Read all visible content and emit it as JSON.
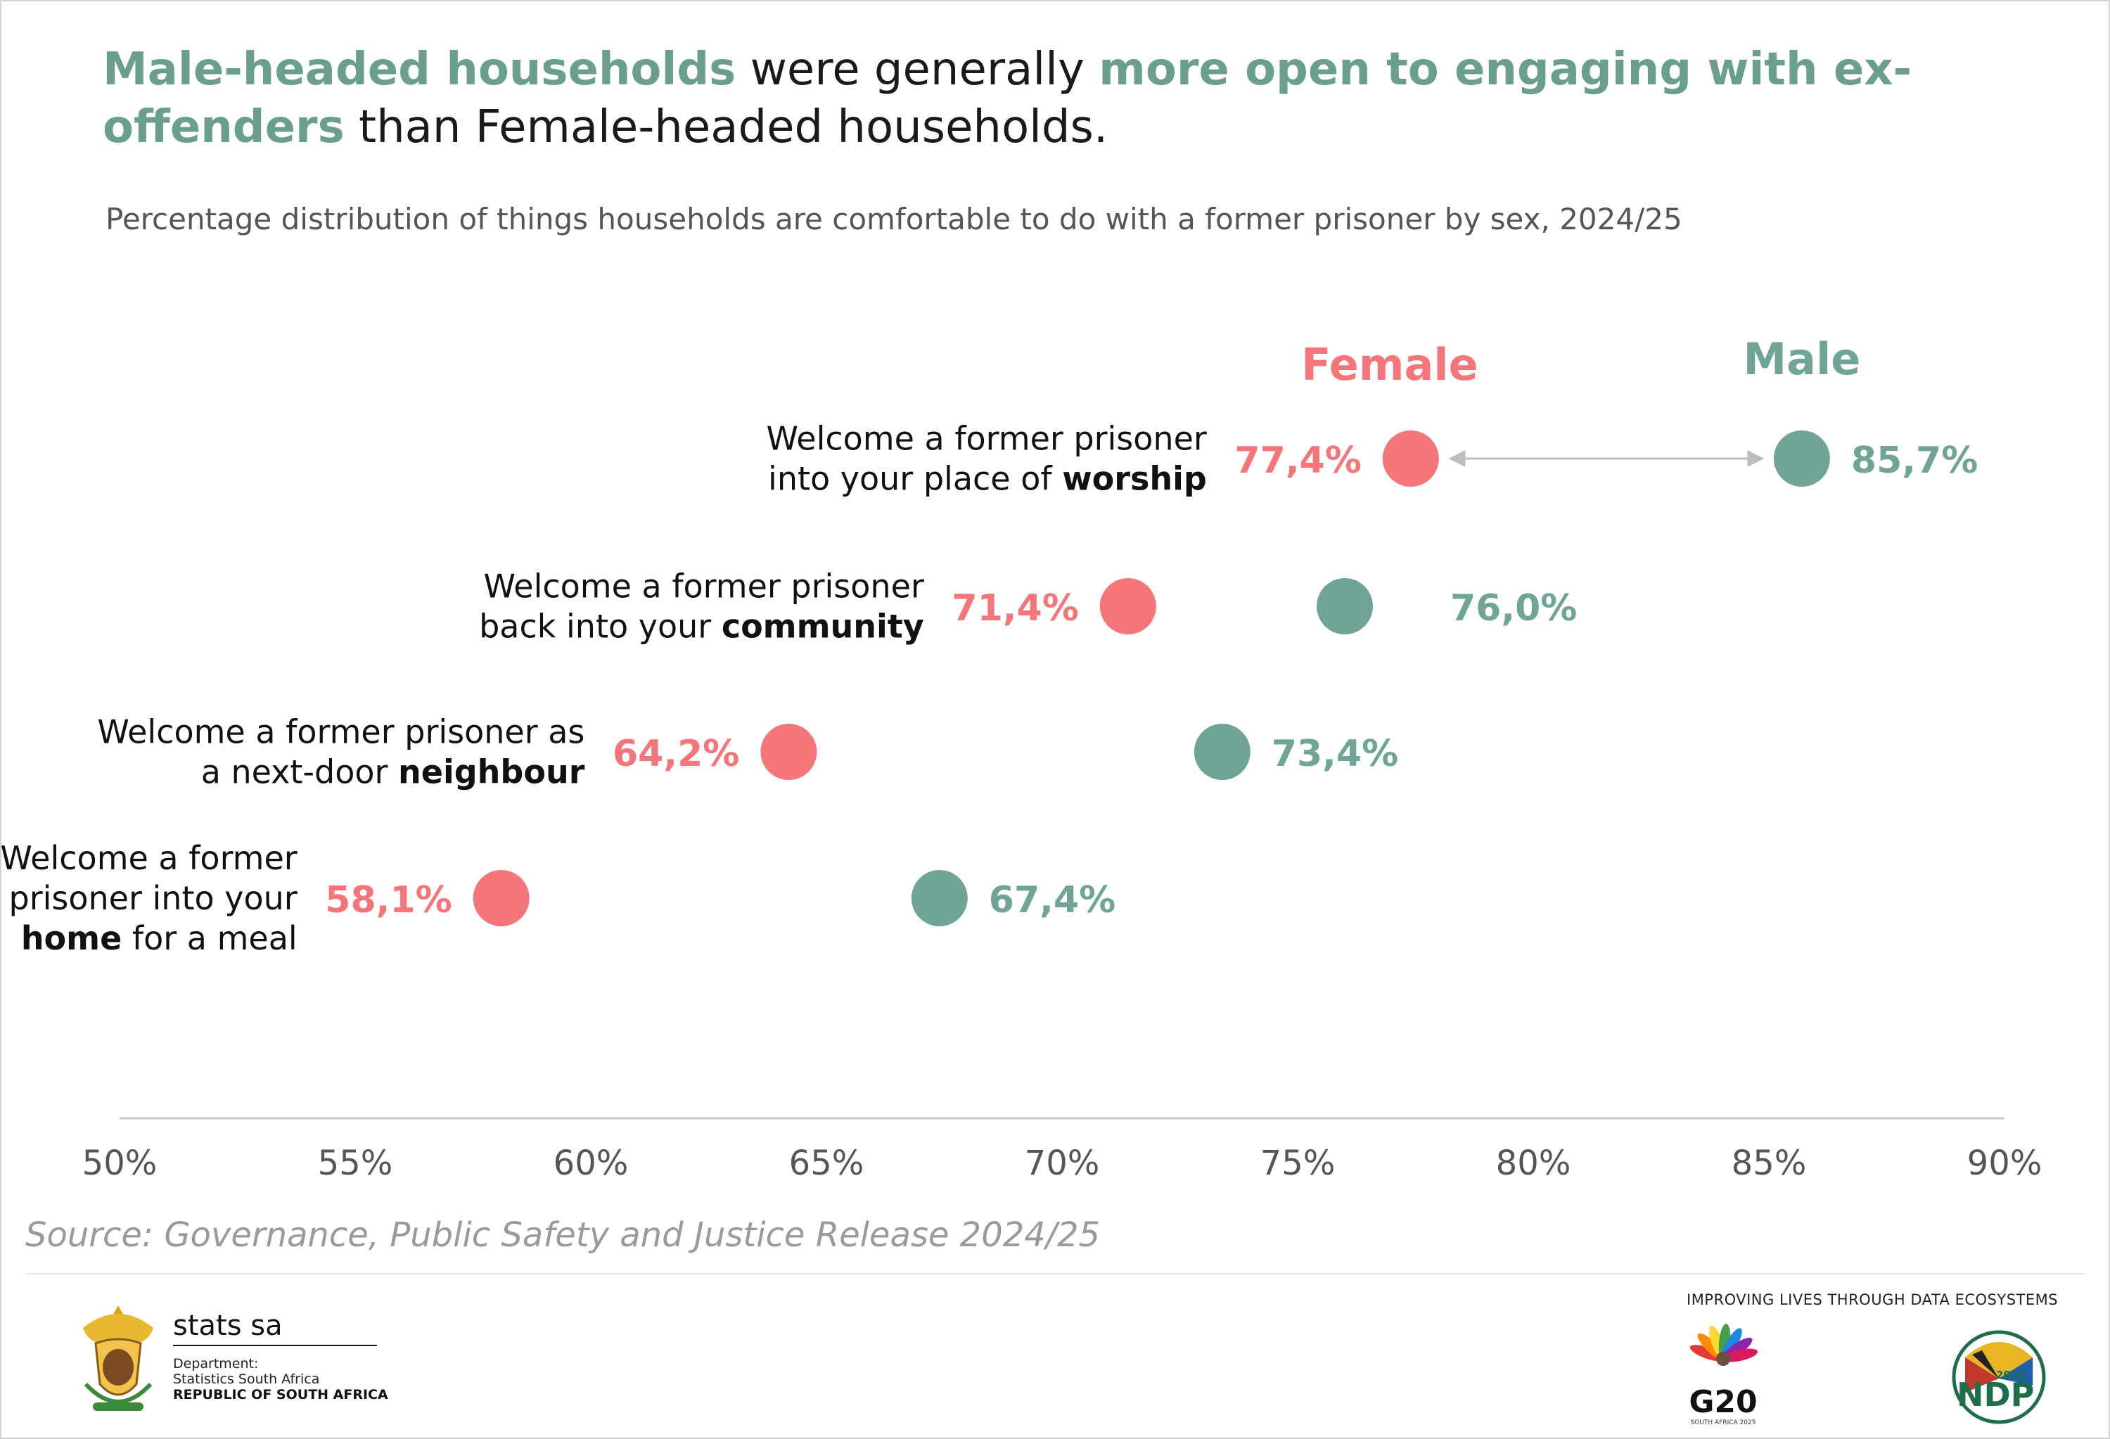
{
  "headline": {
    "part1": "Male-headed households",
    "part2": " were generally ",
    "part3": "more open to engaging with ex-offenders",
    "part4": " than Female-headed households."
  },
  "subtitle": "Percentage distribution of things households are comfortable to do with a former prisoner by sex, 2024/25",
  "source": "Source: Governance, Public Safety and Justice Release 2024/25",
  "colors": {
    "female": "#f4767b",
    "male": "#6fa497",
    "axis": "#c8c8c8",
    "arrow": "#bdbdbd"
  },
  "chart_data": {
    "type": "scatter",
    "xlim": [
      50,
      90
    ],
    "x_tick_labels": [
      "50%",
      "55%",
      "60%",
      "65%",
      "70%",
      "75%",
      "80%",
      "85%",
      "90%"
    ],
    "x_ticks": [
      50,
      55,
      60,
      65,
      70,
      75,
      80,
      85,
      90
    ],
    "series": [
      {
        "name": "Female",
        "values": [
          77.4,
          71.4,
          64.2,
          58.1
        ],
        "labels": [
          "77,4%",
          "71,4%",
          "64,2%",
          "58,1%"
        ]
      },
      {
        "name": "Male",
        "values": [
          85.7,
          76.0,
          73.4,
          67.4
        ],
        "labels": [
          "85,7%",
          "76,0%",
          "73,4%",
          "67,4%"
        ]
      }
    ],
    "categories": [
      {
        "lines": [
          [
            {
              "t": "Welcome a former prisoner",
              "b": false
            }
          ],
          [
            {
              "t": "into your place of ",
              "b": false
            },
            {
              "t": "worship",
              "b": true
            }
          ]
        ]
      },
      {
        "lines": [
          [
            {
              "t": "Welcome a former prisoner",
              "b": false
            }
          ],
          [
            {
              "t": "back into your ",
              "b": false
            },
            {
              "t": "community",
              "b": true
            }
          ]
        ]
      },
      {
        "lines": [
          [
            {
              "t": "Welcome a former prisoner as",
              "b": false
            }
          ],
          [
            {
              "t": "a next-door ",
              "b": false
            },
            {
              "t": "neighbour",
              "b": true
            }
          ]
        ]
      },
      {
        "lines": [
          [
            {
              "t": "Welcome a former",
              "b": false
            }
          ],
          [
            {
              "t": "prisoner into your",
              "b": false
            }
          ],
          [
            {
              "t": "home",
              "b": true
            },
            {
              "t": " for a meal",
              "b": false
            }
          ]
        ]
      }
    ],
    "legend_placement": "top, above first row",
    "grid": false
  },
  "logos": {
    "statssa_name": "stats sa",
    "statssa_dept_1": "Department:",
    "statssa_dept_2": "Statistics South Africa",
    "statssa_rsa": "REPUBLIC OF SOUTH AFRICA",
    "tagline": "IMPROVING LIVES THROUGH DATA ECOSYSTEMS",
    "g20": "G20",
    "g20_sub": "SOUTH AFRICA 2025",
    "ndp": "NDP",
    "ndp_year": "2030"
  }
}
